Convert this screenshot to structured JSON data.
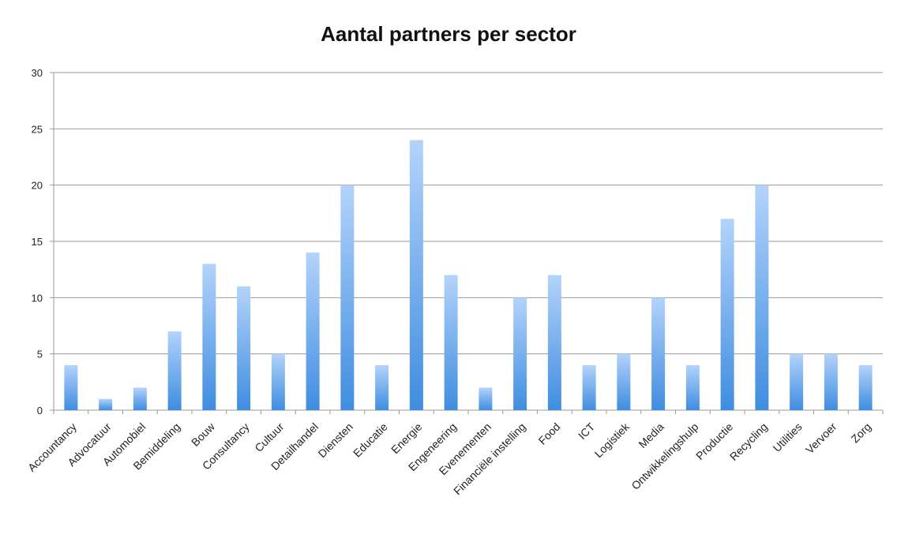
{
  "chart_data": {
    "type": "bar",
    "title": "Aantal partners per sector",
    "categories": [
      "Accountancy",
      "Advocatuur",
      "Automobiel",
      "Bemiddeling",
      "Bouw",
      "Consultancy",
      "Cultuur",
      "Detailhandel",
      "Diensten",
      "Educatie",
      "Energie",
      "Engeneering",
      "Evenementen",
      "Financiële instelling",
      "Food",
      "ICT",
      "Logistiek",
      "Media",
      "Ontwikkelingshulp",
      "Productie",
      "Recycling",
      "Utilities",
      "Vervoer",
      "Zorg"
    ],
    "values": [
      4,
      1,
      2,
      7,
      13,
      11,
      5,
      14,
      20,
      4,
      24,
      12,
      2,
      10,
      12,
      4,
      5,
      10,
      4,
      17,
      20,
      5,
      5,
      4
    ],
    "ylim": [
      0,
      30
    ],
    "yticks": [
      0,
      5,
      10,
      15,
      20,
      25,
      30
    ],
    "grid": true,
    "legend": "none",
    "colors": {
      "bar_top": "#b3d3fb",
      "bar_bottom": "#3f8de0",
      "grid": "#999999",
      "text": "#222222"
    }
  }
}
